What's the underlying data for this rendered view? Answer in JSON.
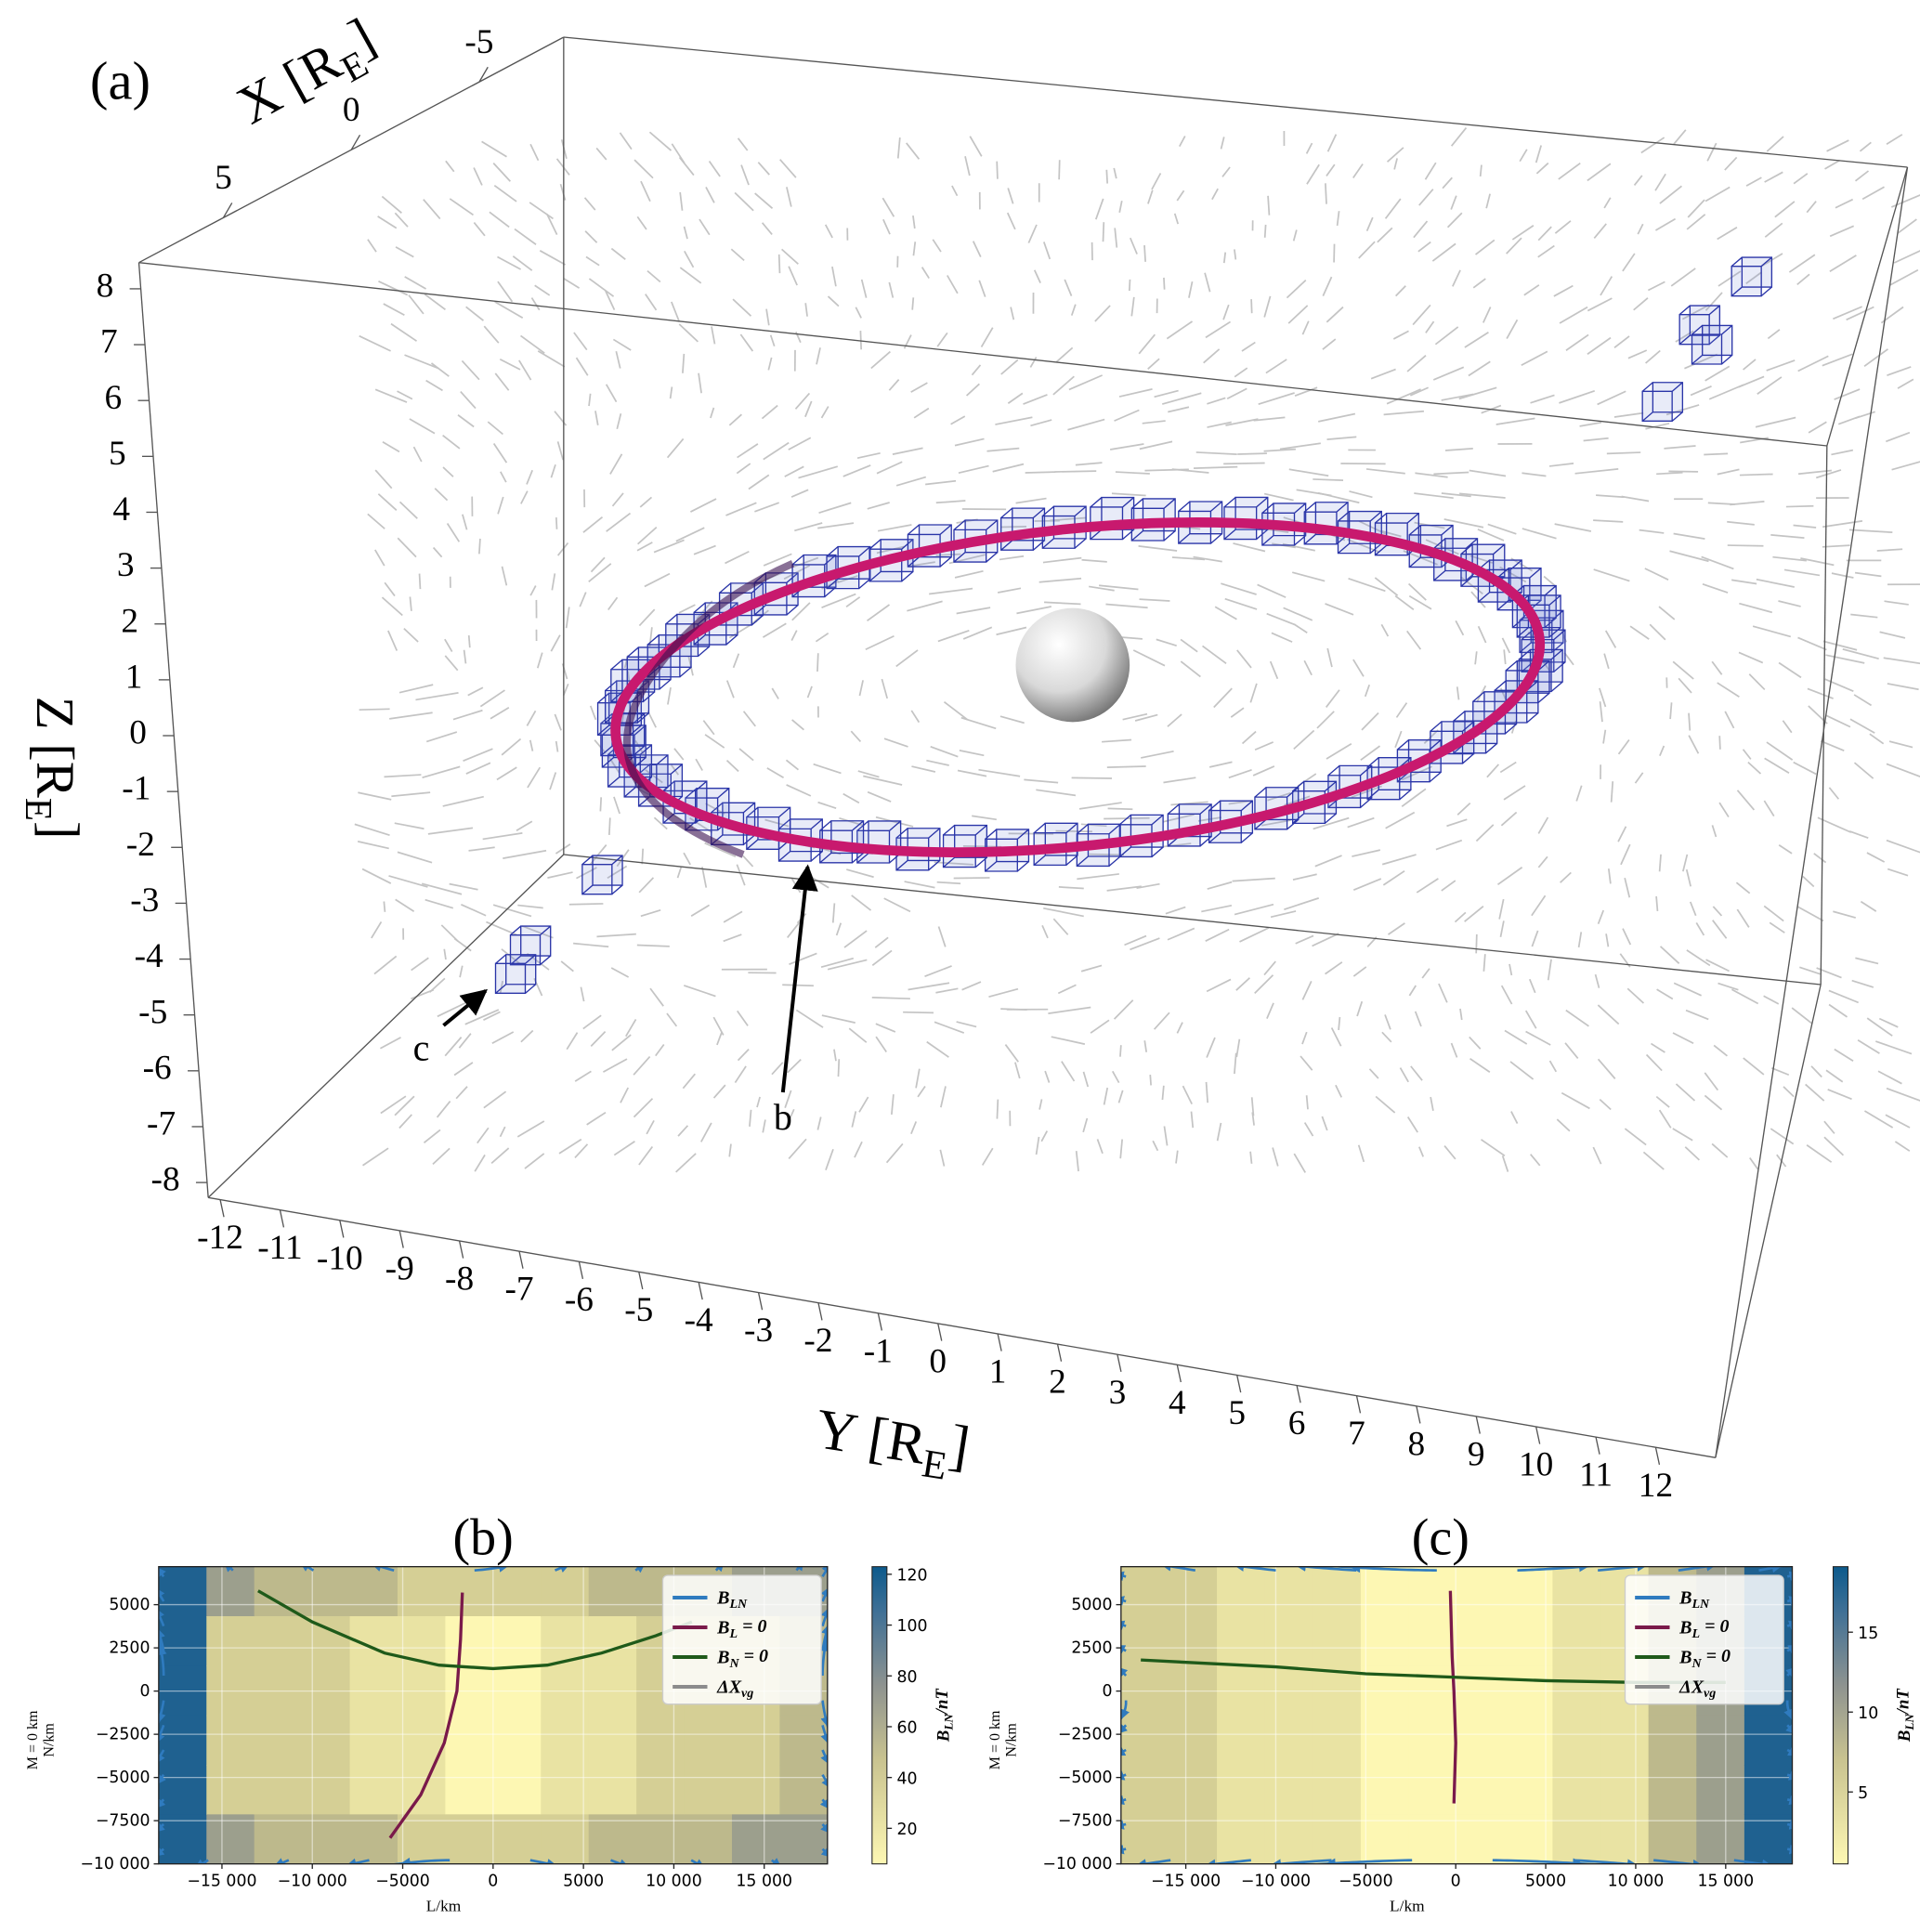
{
  "chart_data": [
    {
      "type": "3d",
      "panel_label": "(a)",
      "xlabel": [
        "X [R",
        "E",
        "]"
      ],
      "ylabel": [
        "Y [R",
        "E",
        "]"
      ],
      "zlabel": [
        "Z [R",
        "E",
        "]"
      ],
      "xlim": [
        8.3,
        -8.3
      ],
      "xticks": [
        5,
        0,
        -5
      ],
      "ylim": [
        -12.2,
        13
      ],
      "yticks": [
        -12,
        -11,
        -10,
        -9,
        -8,
        -7,
        -6,
        -5,
        -4,
        -3,
        -2,
        -1,
        0,
        1,
        2,
        3,
        4,
        5,
        6,
        7,
        8,
        9,
        10,
        11,
        12
      ],
      "zlim": [
        -8.27,
        8.47
      ],
      "zticks": [
        -8,
        -7,
        -6,
        -5,
        -4,
        -3,
        -2,
        -1,
        0,
        1,
        2,
        3,
        4,
        5,
        6,
        7,
        8
      ],
      "annotations": [
        "b",
        "c"
      ]
    },
    {
      "type": "streamplot",
      "panel_label": "(b)",
      "xlabel": "L/km",
      "ylabel": [
        "M = 0 km",
        "N/km"
      ],
      "xlim": [
        -18500,
        18500
      ],
      "xticks": [
        {
          "value": -15000,
          "label": "−15 000"
        },
        {
          "value": -10000,
          "label": "−10 000"
        },
        {
          "value": -5000,
          "label": "−5000"
        },
        0,
        5000,
        {
          "value": 10000,
          "label": "10 000"
        },
        {
          "value": 15000,
          "label": "15 000"
        }
      ],
      "ylim": [
        -10000,
        7200
      ],
      "yticks": [
        {
          "value": -10000,
          "label": "−10 000"
        },
        {
          "value": -7500,
          "label": "−7500"
        },
        {
          "value": -5000,
          "label": "−5000"
        },
        {
          "value": -2500,
          "label": "−2500"
        },
        0,
        2500,
        5000
      ],
      "grid": true,
      "legend": "upper right",
      "colorbar": {
        "label": [
          "B",
          "LN",
          "/nT"
        ],
        "lim": [
          6,
          123
        ],
        "ticks": [
          20,
          40,
          60,
          80,
          100,
          120
        ]
      },
      "series": [
        {
          "name": [
            "B",
            "LN"
          ],
          "color": "#2f7bbf"
        },
        {
          "name": [
            "B",
            "L",
            " = 0"
          ],
          "color": "#7a1a4a",
          "x": [
            -1700,
            -1800,
            -2000,
            -2700,
            -4000,
            -5700
          ],
          "values": [
            5700,
            3000,
            0,
            -3000,
            -6000,
            -8500
          ]
        },
        {
          "name": [
            "B",
            "N",
            " = 0"
          ],
          "color": "#1f5a1a",
          "x": [
            -13000,
            -10000,
            -6000,
            -3000,
            0,
            3000,
            6000,
            9000,
            11000
          ],
          "values": [
            5800,
            4000,
            2200,
            1500,
            1300,
            1500,
            2200,
            3200,
            4000
          ]
        },
        {
          "name": [
            "ΔX",
            "vg"
          ],
          "color": "#8c8c8c"
        }
      ]
    },
    {
      "type": "streamplot",
      "panel_label": "(c)",
      "xlabel": "L/km",
      "ylabel": [
        "M = 0 km",
        "N/km"
      ],
      "xlim": [
        -18600,
        18700
      ],
      "xticks": [
        {
          "value": -15000,
          "label": "−15 000"
        },
        {
          "value": -10000,
          "label": "−10 000"
        },
        {
          "value": -5000,
          "label": "−5000"
        },
        0,
        5000,
        {
          "value": 10000,
          "label": "10 000"
        },
        {
          "value": 15000,
          "label": "15 000"
        }
      ],
      "ylim": [
        -10000,
        7200
      ],
      "yticks": [
        {
          "value": -10000,
          "label": "−10 000"
        },
        {
          "value": -7500,
          "label": "−7500"
        },
        {
          "value": -5000,
          "label": "−5000"
        },
        {
          "value": -2500,
          "label": "−2500"
        },
        0,
        2500,
        5000
      ],
      "grid": true,
      "legend": "upper right",
      "colorbar": {
        "label": [
          "B",
          "LN",
          "/nT"
        ],
        "lim": [
          0.5,
          19.1
        ],
        "ticks": [
          5,
          10,
          15
        ]
      },
      "series": [
        {
          "name": [
            "B",
            "LN"
          ],
          "color": "#2f7bbf"
        },
        {
          "name": [
            "B",
            "L",
            " = 0"
          ],
          "color": "#7a1a4a",
          "x": [
            -300,
            -200,
            -100,
            0,
            -100
          ],
          "values": [
            5800,
            2000,
            0,
            -3000,
            -6500
          ]
        },
        {
          "name": [
            "B",
            "N",
            " = 0"
          ],
          "color": "#1f5a1a",
          "x": [
            -17500,
            -10000,
            -5000,
            0,
            5000,
            10000,
            15000
          ],
          "values": [
            1800,
            1400,
            1000,
            800,
            600,
            500,
            500
          ]
        },
        {
          "name": [
            "ΔX",
            "vg"
          ],
          "color": "#8c8c8c"
        }
      ]
    }
  ]
}
